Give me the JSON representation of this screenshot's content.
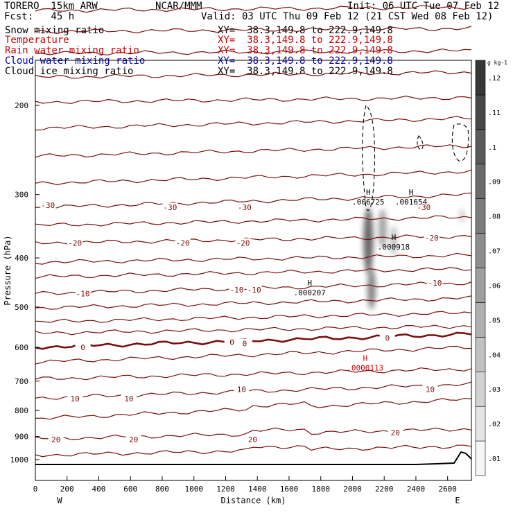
{
  "header": {
    "model": "TORERO  15km ARW",
    "forecast": "Fcst:   45 h",
    "center": "NCAR/MMM",
    "init": "Init: 06 UTC Tue 07 Feb 12",
    "valid": "Valid: 03 UTC Thu 09 Feb 12 (21 CST Wed 08 Feb 12)",
    "fields": [
      {
        "name": "Snow mixing ratio",
        "xy": "XY=  38.3,149.8 to 222.9,149.8",
        "color": "#000000"
      },
      {
        "name": "Temperature",
        "xy": "XY=  38.3,149.8 to 222.9,149.8",
        "color": "#cc0000"
      },
      {
        "name": "Rain water mixing ratio",
        "xy": "XY=  38.3,149.8 to 222.9,149.8",
        "color": "#cc0000"
      },
      {
        "name": "Cloud water mixing ratio",
        "xy": "XY=  38.3,149.8 to 222.9,149.8",
        "color": "#0000aa"
      },
      {
        "name": "Cloud ice mixing ratio",
        "xy": "XY=  38.3,149.8 to 222.9,149.8",
        "color": "#000000"
      }
    ]
  },
  "chart_data": {
    "type": "cross-section contour",
    "xlabel": "Distance (km)",
    "ylabel": "Pressure (hPa)",
    "x_ticks": [
      0,
      200,
      400,
      600,
      800,
      1000,
      1200,
      1400,
      1600,
      1800,
      2000,
      2200,
      2400,
      2600
    ],
    "y_ticks": [
      200,
      300,
      400,
      500,
      600,
      700,
      800,
      900,
      1000
    ],
    "xlim": [
      0,
      2750
    ],
    "ylim": [
      1050,
      100
    ],
    "y_scale": "log",
    "west_label": "W",
    "east_label": "E",
    "temperature_colors": {
      "line": "#7a0f0f",
      "freezing": "#7a0f0f"
    },
    "temperature_labels": [
      {
        "text": "-30",
        "x": 80,
        "p": 315
      },
      {
        "text": "-30",
        "x": 850,
        "p": 318
      },
      {
        "text": "-30",
        "x": 1320,
        "p": 318
      },
      {
        "text": "-30",
        "x": 2450,
        "p": 318
      },
      {
        "text": "-20",
        "x": 250,
        "p": 374
      },
      {
        "text": "-20",
        "x": 930,
        "p": 374
      },
      {
        "text": "-20",
        "x": 1310,
        "p": 374
      },
      {
        "text": "-20",
        "x": 2500,
        "p": 365
      },
      {
        "text": "-10",
        "x": 300,
        "p": 470
      },
      {
        "text": "-10",
        "x": 1270,
        "p": 462
      },
      {
        "text": "-10",
        "x": 1380,
        "p": 462
      },
      {
        "text": "-10",
        "x": 2520,
        "p": 448
      },
      {
        "text": "0",
        "x": 300,
        "p": 600
      },
      {
        "text": "0",
        "x": 1240,
        "p": 586
      },
      {
        "text": "0",
        "x": 1320,
        "p": 590
      },
      {
        "text": "0",
        "x": 2220,
        "p": 575
      },
      {
        "text": "10",
        "x": 250,
        "p": 758
      },
      {
        "text": "10",
        "x": 590,
        "p": 758
      },
      {
        "text": "10",
        "x": 1300,
        "p": 726
      },
      {
        "text": "10",
        "x": 2490,
        "p": 726
      },
      {
        "text": "20",
        "x": 130,
        "p": 913
      },
      {
        "text": "20",
        "x": 620,
        "p": 913
      },
      {
        "text": "20",
        "x": 1370,
        "p": 913
      },
      {
        "text": "20",
        "x": 2270,
        "p": 885
      }
    ],
    "extrema": [
      {
        "kind": "H",
        "value": ".006725",
        "x": 2100,
        "p": 308,
        "color": "#000000"
      },
      {
        "kind": "H",
        "value": ".001654",
        "x": 2370,
        "p": 308,
        "color": "#000000"
      },
      {
        "kind": "H",
        "value": ".000918",
        "x": 2260,
        "p": 378,
        "color": "#000000"
      },
      {
        "kind": "H",
        "value": ".000207",
        "x": 1730,
        "p": 465,
        "color": "#000000"
      },
      {
        "kind": "H",
        "value": ".0000113",
        "x": 2080,
        "p": 655,
        "color": "#cc0000"
      }
    ],
    "colorbar": {
      "unit": "g kg-1",
      "labels": [
        ".01",
        ".02",
        ".03",
        ".04",
        ".05",
        ".06",
        ".07",
        ".08",
        ".09",
        ".1",
        ".11",
        ".12"
      ],
      "levels": [
        0.01,
        0.02,
        0.03,
        0.04,
        0.05,
        0.06,
        0.07,
        0.08,
        0.09,
        0.1,
        0.11,
        0.12,
        0.13
      ]
    }
  }
}
